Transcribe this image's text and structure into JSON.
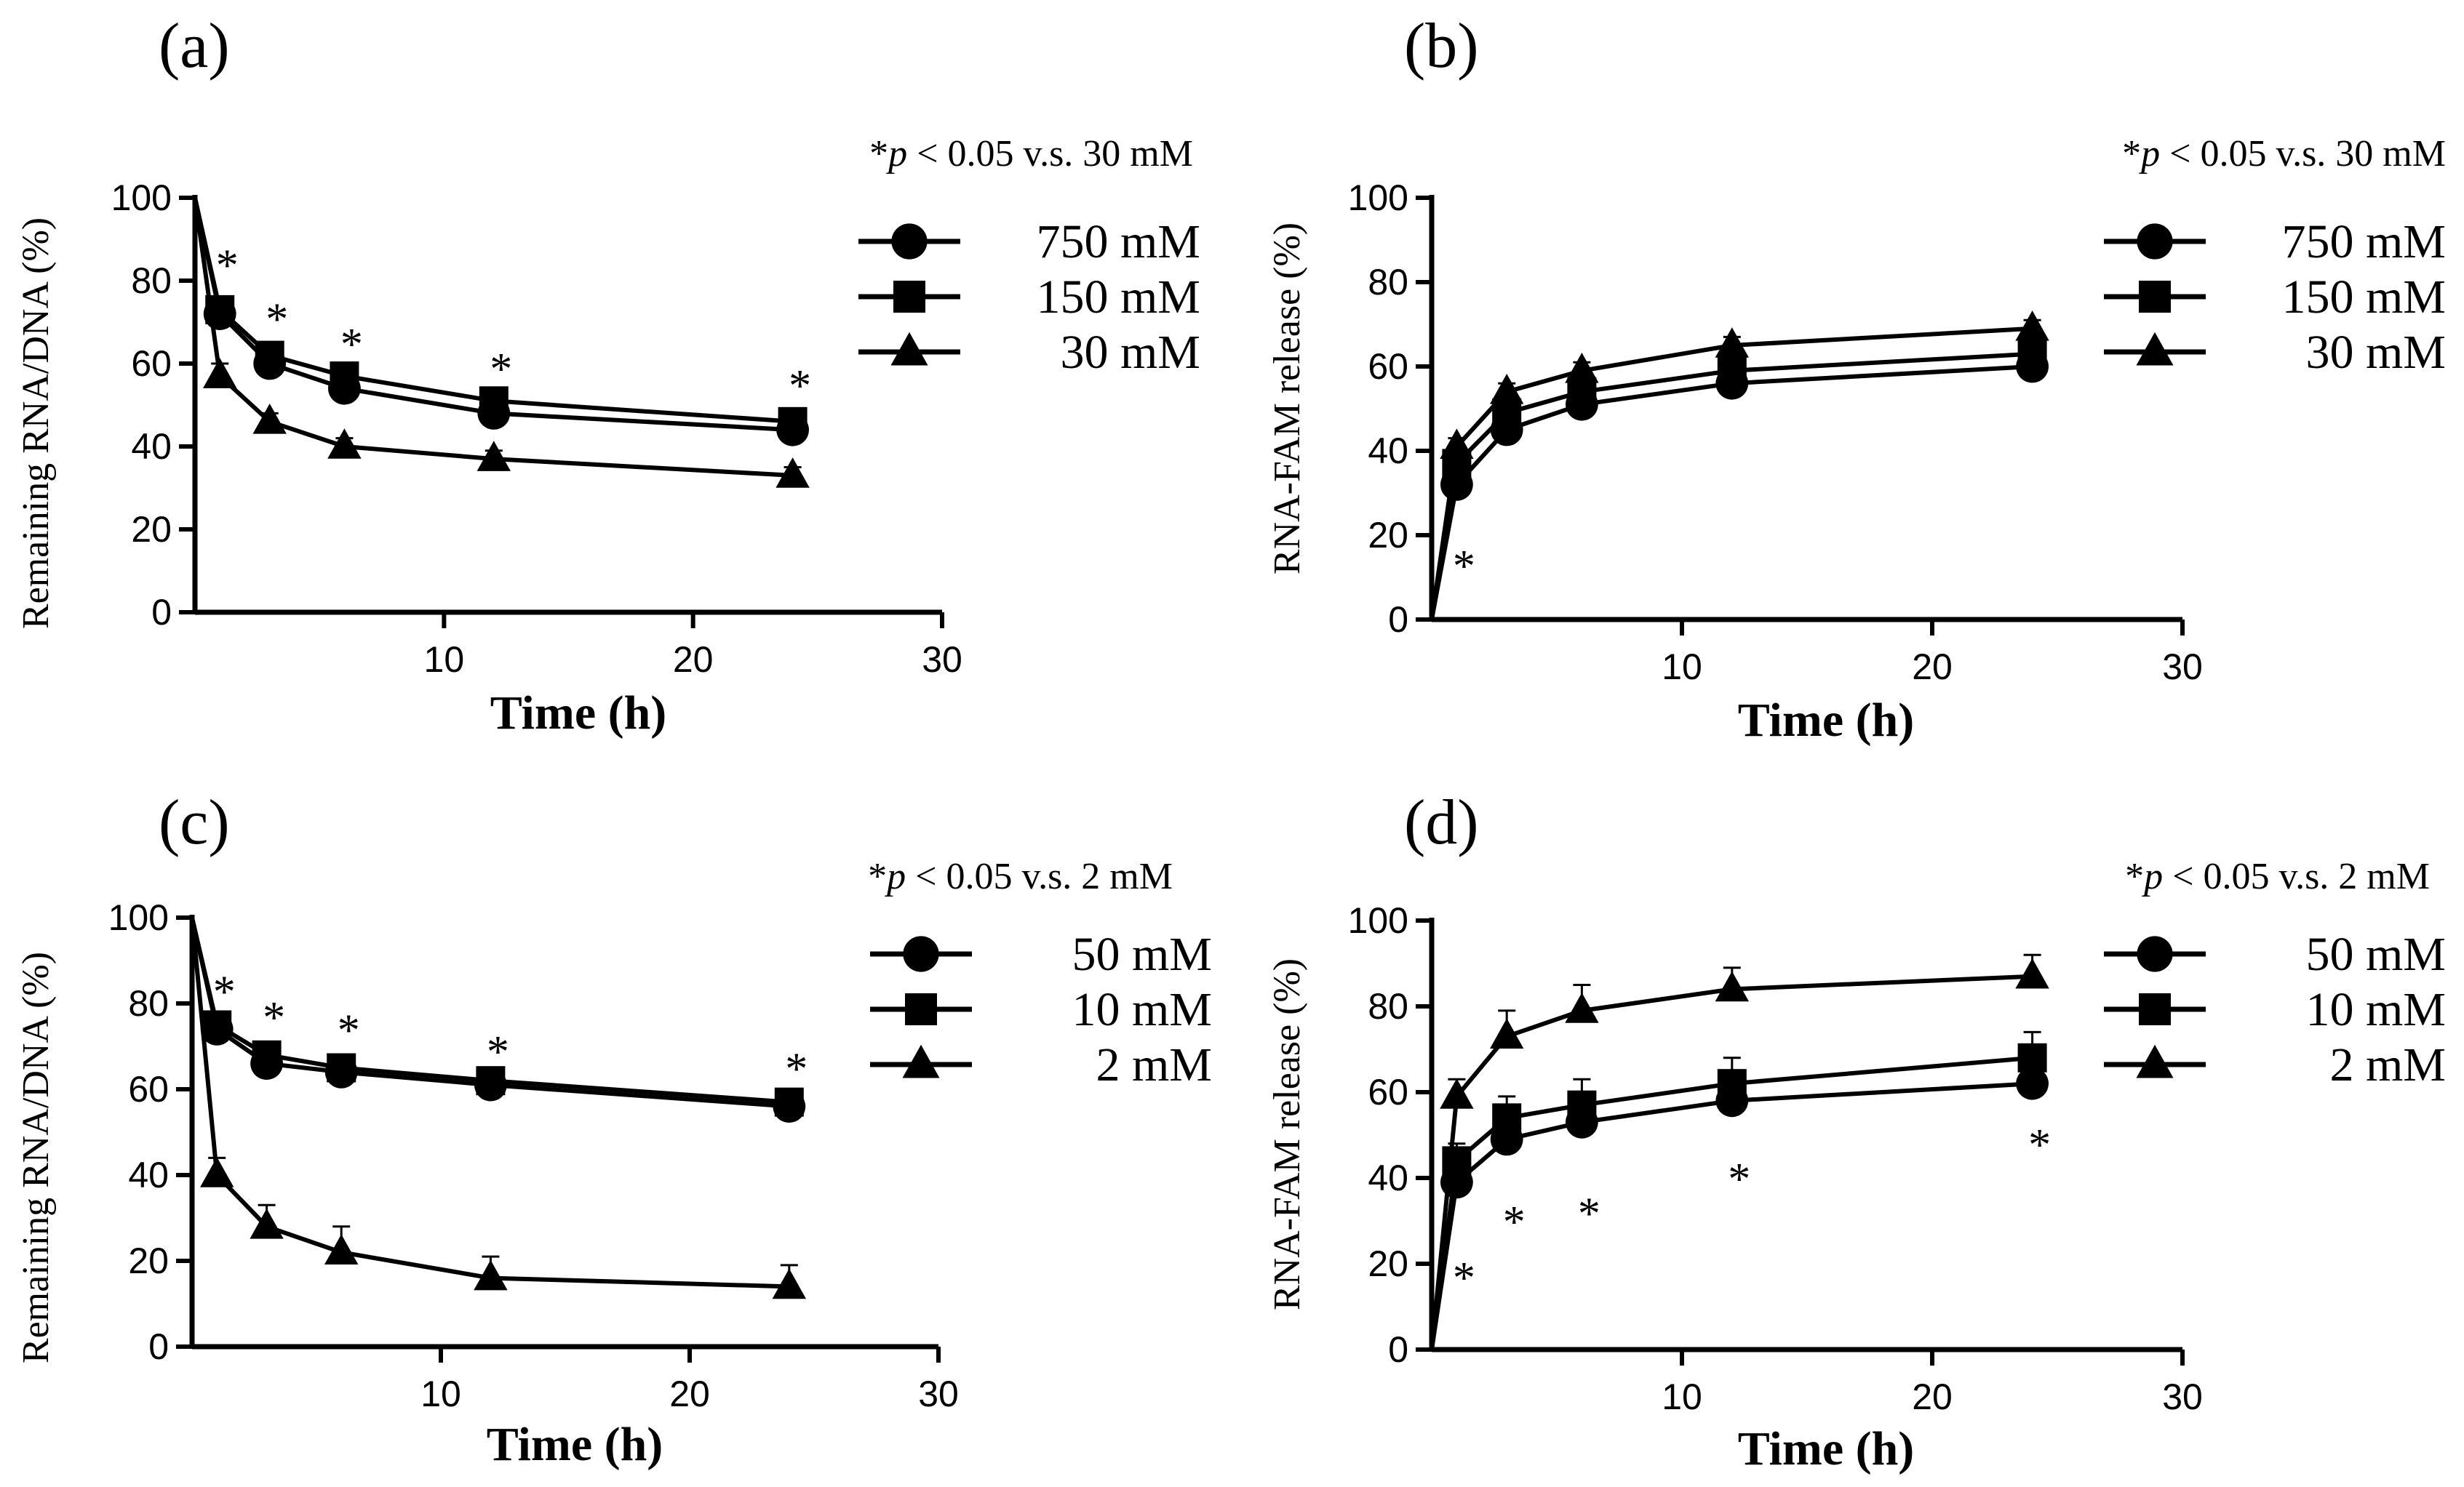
{
  "figure": {
    "background": "#ffffff",
    "ink": "#000000"
  },
  "chart_data": [
    {
      "type": "line",
      "panel_label": "(a)",
      "significance_note": {
        "star": "*",
        "p": "p",
        "rest": " < 0.05 v.s. 30 mM"
      },
      "xlabel": "Time (h)",
      "ylabel": "Remaining RNA/DNA  (%)",
      "xlim": [
        0,
        30
      ],
      "ylim": [
        0,
        100
      ],
      "xticks": [
        10,
        20,
        30
      ],
      "yticks": [
        0,
        20,
        40,
        60,
        80,
        100
      ],
      "legend_position": "top-right",
      "series": [
        {
          "name": "750 mM",
          "marker": "circle",
          "x": [
            0,
            1,
            3,
            6,
            12,
            24
          ],
          "y": [
            100,
            72,
            60,
            54,
            48,
            44
          ],
          "err": [
            0,
            2,
            2,
            2,
            2,
            2
          ]
        },
        {
          "name": "150 mM",
          "marker": "square",
          "x": [
            0,
            1,
            3,
            6,
            12,
            24
          ],
          "y": [
            100,
            73,
            62,
            57,
            51,
            46
          ],
          "err": [
            0,
            2,
            2,
            2,
            2,
            2
          ]
        },
        {
          "name": "30 mM",
          "marker": "triangle",
          "x": [
            0,
            1,
            3,
            6,
            12,
            24
          ],
          "y": [
            100,
            57,
            46,
            40,
            37,
            33
          ],
          "err": [
            0,
            3,
            2,
            2,
            2,
            2
          ]
        }
      ],
      "annotations": [
        {
          "text": "*",
          "x": 1,
          "y": 85
        },
        {
          "text": "*",
          "x": 3,
          "y": 72
        },
        {
          "text": "*",
          "x": 6,
          "y": 66
        },
        {
          "text": "*",
          "x": 12,
          "y": 60
        },
        {
          "text": "*",
          "x": 24,
          "y": 56
        }
      ]
    },
    {
      "type": "line",
      "panel_label": "(b)",
      "significance_note": {
        "star": "*",
        "p": "p",
        "rest": " < 0.05 v.s. 30 mM"
      },
      "xlabel": "Time (h)",
      "ylabel": "RNA-FAM release (%)",
      "xlim": [
        0,
        30
      ],
      "ylim": [
        0,
        100
      ],
      "xticks": [
        10,
        20,
        30
      ],
      "yticks": [
        0,
        20,
        40,
        60,
        80,
        100
      ],
      "legend_position": "top-right",
      "series": [
        {
          "name": "750 mM",
          "marker": "circle",
          "x": [
            0,
            1,
            3,
            6,
            12,
            24
          ],
          "y": [
            0,
            32,
            45,
            51,
            56,
            60
          ],
          "err": [
            0,
            2,
            2,
            2,
            2,
            2
          ]
        },
        {
          "name": "150 mM",
          "marker": "square",
          "x": [
            0,
            1,
            3,
            6,
            12,
            24
          ],
          "y": [
            0,
            37,
            49,
            54,
            59,
            63
          ],
          "err": [
            0,
            2,
            2,
            2,
            2,
            2
          ]
        },
        {
          "name": "30 mM",
          "marker": "triangle",
          "x": [
            0,
            1,
            3,
            6,
            12,
            24
          ],
          "y": [
            0,
            41,
            54,
            59,
            65,
            69
          ],
          "err": [
            0,
            2,
            2,
            2,
            2,
            2
          ]
        }
      ],
      "annotations": [
        {
          "text": "*",
          "x": 1,
          "y": 14
        }
      ]
    },
    {
      "type": "line",
      "panel_label": "(c)",
      "significance_note": {
        "star": "*",
        "p": "p",
        "rest": " < 0.05 v.s. 2 mM"
      },
      "xlabel": "Time (h)",
      "ylabel": "Remaining RNA/DNA (%)",
      "xlim": [
        0,
        30
      ],
      "ylim": [
        0,
        100
      ],
      "xticks": [
        10,
        20,
        30
      ],
      "yticks": [
        0,
        20,
        40,
        60,
        80,
        100
      ],
      "legend_position": "top-right",
      "series": [
        {
          "name": "50 mM",
          "marker": "circle",
          "x": [
            0,
            1,
            3,
            6,
            12,
            24
          ],
          "y": [
            100,
            74,
            66,
            64,
            61,
            56
          ],
          "err": [
            0,
            2,
            2,
            2,
            2,
            3
          ]
        },
        {
          "name": "10 mM",
          "marker": "square",
          "x": [
            0,
            1,
            3,
            6,
            12,
            24
          ],
          "y": [
            100,
            75,
            68,
            65,
            62,
            57
          ],
          "err": [
            0,
            2,
            2,
            2,
            2,
            3
          ]
        },
        {
          "name": "2 mM",
          "marker": "triangle",
          "x": [
            0,
            1,
            3,
            6,
            12,
            24
          ],
          "y": [
            100,
            40,
            28,
            22,
            16,
            14
          ],
          "err": [
            0,
            4,
            5,
            6,
            5,
            5
          ]
        }
      ],
      "annotations": [
        {
          "text": "*",
          "x": 1,
          "y": 84
        },
        {
          "text": "*",
          "x": 3,
          "y": 78
        },
        {
          "text": "*",
          "x": 6,
          "y": 75
        },
        {
          "text": "*",
          "x": 12,
          "y": 70
        },
        {
          "text": "*",
          "x": 24,
          "y": 66
        }
      ]
    },
    {
      "type": "line",
      "panel_label": "(d)",
      "significance_note": {
        "star": "*",
        "p": "p",
        "rest": " < 0.05 v.s. 2 mM"
      },
      "xlabel": "Time (h)",
      "ylabel": "RNA-FAM release (%)",
      "xlim": [
        0,
        30
      ],
      "ylim": [
        0,
        100
      ],
      "xticks": [
        10,
        20,
        30
      ],
      "yticks": [
        0,
        20,
        40,
        60,
        80,
        100
      ],
      "legend_position": "top-right",
      "series": [
        {
          "name": "50 mM",
          "marker": "circle",
          "x": [
            0,
            1,
            3,
            6,
            12,
            24
          ],
          "y": [
            0,
            39,
            49,
            53,
            58,
            62
          ],
          "err": [
            0,
            3,
            3,
            3,
            3,
            3
          ]
        },
        {
          "name": "10 mM",
          "marker": "square",
          "x": [
            0,
            1,
            3,
            6,
            12,
            24
          ],
          "y": [
            0,
            44,
            54,
            57,
            62,
            68
          ],
          "err": [
            0,
            4,
            5,
            6,
            6,
            6
          ]
        },
        {
          "name": "2 mM",
          "marker": "triangle",
          "x": [
            0,
            1,
            3,
            6,
            12,
            24
          ],
          "y": [
            0,
            59,
            73,
            79,
            84,
            87
          ],
          "err": [
            0,
            4,
            6,
            6,
            5,
            5
          ]
        }
      ],
      "annotations": [
        {
          "text": "*",
          "x": 1,
          "y": 18
        },
        {
          "text": "*",
          "x": 3,
          "y": 31
        },
        {
          "text": "*",
          "x": 6,
          "y": 33
        },
        {
          "text": "*",
          "x": 12,
          "y": 41
        },
        {
          "text": "*",
          "x": 24,
          "y": 49
        }
      ]
    }
  ]
}
